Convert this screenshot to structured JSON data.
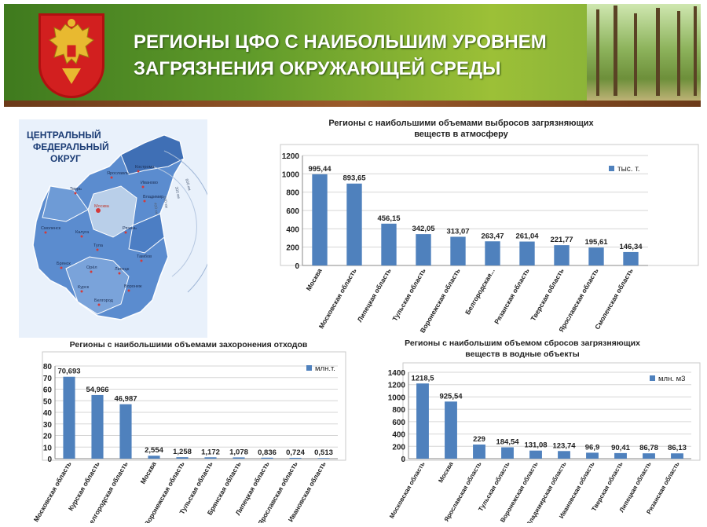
{
  "header": {
    "title_line1": "РЕГИОНЫ ЦФО С НАИБОЛЬШИМ УРОВНЕМ",
    "title_line2": "ЗАГРЯЗНЕНИЯ ОКРУЖАЮЩЕЙ СРЕДЫ"
  },
  "map": {
    "title_lines": [
      "ЦЕНТРАЛЬНЫЙ",
      "ФЕДЕРАЛЬНЫЙ",
      "ОКРУГ"
    ],
    "cities": [
      "Ярославль",
      "Кострома",
      "Тверь",
      "Иваново",
      "Владимир",
      "Москва",
      "Смоленск",
      "Калуга",
      "Рязань",
      "Тула",
      "Тамбов",
      "Брянск",
      "Орёл",
      "Липецк",
      "Воронеж",
      "Курск",
      "Белгород"
    ],
    "distance_labels": [
      "600 км",
      "300 км",
      "600 км",
      "400 км"
    ]
  },
  "chart_data": [
    {
      "type": "bar",
      "title": "Регионы с наибольшими объемами выбросов загрязняющих веществ в атмосферу",
      "title_lines": [
        "Регионы с наибольшими объемами выбросов загрязняющих",
        "веществ в атмосферу"
      ],
      "categories": [
        "Москва",
        "Московская область",
        "Липецкая область",
        "Тульская область",
        "Воронежская область",
        "Белгородская...",
        "Рязанская область",
        "Тверская область",
        "Ярославская область",
        "Смоленская область"
      ],
      "values": [
        995.44,
        893.65,
        456.15,
        342.05,
        313.07,
        263.47,
        261.04,
        221.77,
        195.61,
        146.34
      ],
      "value_labels": [
        "995,44",
        "893,65",
        "456,15",
        "342,05",
        "313,07",
        "263,47",
        "261,04",
        "221,77",
        "195,61",
        "146,34"
      ],
      "legend": "тыс. т.",
      "legend_position": "top-right",
      "yticks": [
        "0",
        "200",
        "400",
        "600",
        "800",
        "1000",
        "1200"
      ],
      "ylim": [
        0,
        1200
      ],
      "grid": true,
      "color": "#4f81bd"
    },
    {
      "type": "bar",
      "title": "Регионы с наибольшими объемами захоронения отходов",
      "title_lines": [
        "Регионы с наибольшими объемами захоронения отходов"
      ],
      "categories": [
        "Московская область",
        "Курская область",
        "Белгородская область",
        "Москва",
        "Воронежская область",
        "Тульская область",
        "Брянская область",
        "Липецкая область",
        "Ярославская область",
        "Ивановская область"
      ],
      "values": [
        70.693,
        54.966,
        46.987,
        2.554,
        1.258,
        1.172,
        1.078,
        0.836,
        0.724,
        0.513
      ],
      "value_labels": [
        "70,693",
        "54,966",
        "46,987",
        "2,554",
        "1,258",
        "1,172",
        "1,078",
        "0,836",
        "0,724",
        "0,513"
      ],
      "legend": "млн.т.",
      "legend_position": "top-right",
      "yticks": [
        "0",
        "10",
        "20",
        "30",
        "40",
        "50",
        "60",
        "70",
        "80"
      ],
      "ylim": [
        0,
        80
      ],
      "grid": true,
      "color": "#4f81bd"
    },
    {
      "type": "bar",
      "title": "Регионы с наибольшим объемом сбросов загрязняющих веществ в водные объекты",
      "title_lines": [
        "Регионы с наибольшим объемом сбросов загрязняющих",
        "веществ в водные объекты"
      ],
      "categories": [
        "Московская область",
        "Москва",
        "Ярославская область",
        "Тульская область",
        "Воронежская область",
        "Владимирская область",
        "Ивановская область",
        "Тверская область",
        "Липецкая область",
        "Рязанская область"
      ],
      "values": [
        1218.5,
        925.54,
        229,
        184.54,
        131.08,
        123.74,
        96.9,
        90.41,
        86.78,
        86.13
      ],
      "value_labels": [
        "1218,5",
        "925,54",
        "229",
        "184,54",
        "131,08",
        "123,74",
        "96,9",
        "90,41",
        "86,78",
        "86,13"
      ],
      "legend": "млн. м3",
      "legend_position": "top-right",
      "yticks": [
        "0",
        "200",
        "400",
        "600",
        "800",
        "1000",
        "1200",
        "1400"
      ],
      "ylim": [
        0,
        1400
      ],
      "grid": true,
      "color": "#4f81bd"
    }
  ]
}
